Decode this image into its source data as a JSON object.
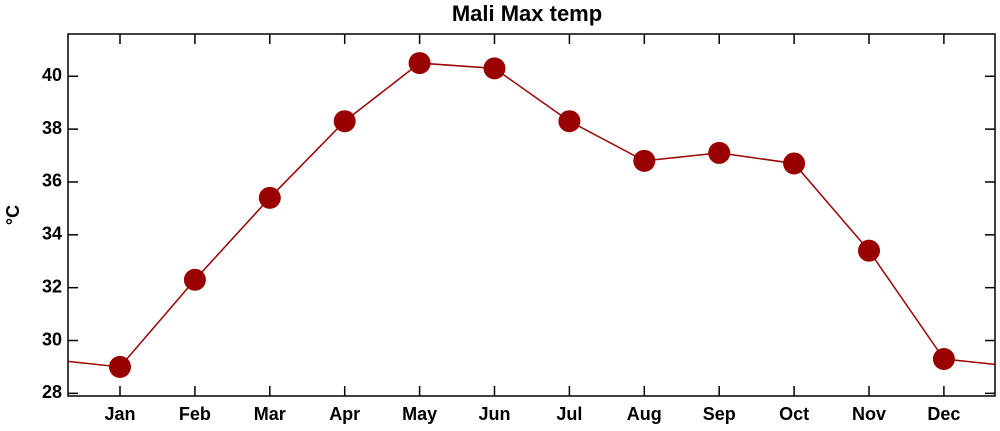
{
  "chart_data": {
    "type": "line",
    "title": "Mali Max temp",
    "y_label": "°C",
    "categories": [
      "Jan",
      "Feb",
      "Mar",
      "Apr",
      "May",
      "Jun",
      "Jul",
      "Aug",
      "Sep",
      "Oct",
      "Nov",
      "Dec"
    ],
    "series": [
      {
        "name": "Max temp",
        "color": "#990000",
        "values": [
          29.0,
          32.3,
          35.4,
          38.3,
          40.5,
          40.3,
          38.3,
          36.8,
          37.1,
          36.7,
          33.4,
          29.3
        ]
      }
    ],
    "ylim": [
      27.9,
      41.6
    ],
    "yticks": [
      28,
      30,
      32,
      34,
      36,
      38,
      40
    ],
    "grid": false
  }
}
